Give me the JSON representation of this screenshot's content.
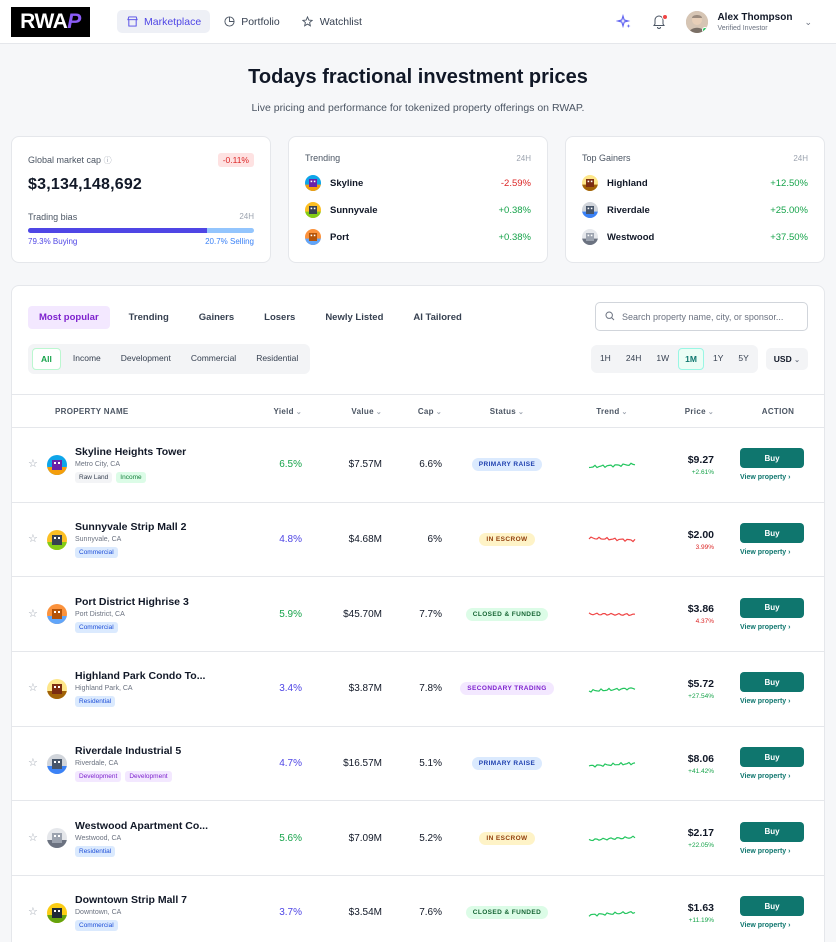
{
  "header": {
    "logo_text": "RWA",
    "logo_accent": "P",
    "nav": [
      {
        "label": "Marketplace",
        "icon": "store-icon",
        "active": true
      },
      {
        "label": "Portfolio",
        "icon": "pie-chart-icon",
        "active": false
      },
      {
        "label": "Watchlist",
        "icon": "star-icon",
        "active": false
      }
    ],
    "user": {
      "name": "Alex Thompson",
      "role": "Verified Investor"
    }
  },
  "hero": {
    "title": "Todays fractional investment prices",
    "subtitle": "Live pricing and performance for tokenized property offerings on RWAP."
  },
  "market_cap": {
    "label": "Global market cap",
    "change": "-0.11%",
    "value": "$3,134,148,692",
    "bias_label": "Trading bias",
    "bias_period": "24H",
    "buying_pct": 79.3,
    "buying_label": "79.3% Buying",
    "selling_label": "20.7% Selling"
  },
  "trending": {
    "title": "Trending",
    "period": "24H",
    "items": [
      {
        "name": "Skyline",
        "change": "-2.59%",
        "dir": "neg"
      },
      {
        "name": "Sunnyvale",
        "change": "+0.38%",
        "dir": "pos"
      },
      {
        "name": "Port",
        "change": "+0.38%",
        "dir": "pos"
      }
    ]
  },
  "gainers": {
    "title": "Top Gainers",
    "period": "24H",
    "items": [
      {
        "name": "Highland",
        "change": "+12.50%",
        "dir": "pos"
      },
      {
        "name": "Riverdale",
        "change": "+25.00%",
        "dir": "pos"
      },
      {
        "name": "Westwood",
        "change": "+37.50%",
        "dir": "pos"
      }
    ]
  },
  "tabs": [
    "Most popular",
    "Trending",
    "Gainers",
    "Losers",
    "Newly Listed",
    "AI Tailored"
  ],
  "search": {
    "placeholder": "Search property name, city, or sponsor..."
  },
  "categories": [
    "All",
    "Income",
    "Development",
    "Commercial",
    "Residential"
  ],
  "ranges": [
    "1H",
    "24H",
    "1W",
    "1M",
    "1Y",
    "5Y"
  ],
  "currency": "USD",
  "columns": {
    "name": "PROPERTY NAME",
    "yield": "Yield",
    "value": "Value",
    "cap": "Cap",
    "status": "Status",
    "trend": "Trend",
    "price": "Price",
    "action": "ACTION"
  },
  "buy_label": "Buy",
  "view_label": "View property",
  "rows": [
    {
      "name": "Skyline Heights Tower",
      "location": "Metro City, CA",
      "tags": [
        [
          "Raw Land",
          "gray"
        ],
        [
          "Income",
          "green"
        ]
      ],
      "yield": "6.5%",
      "yield_color": "green",
      "value": "$7.57M",
      "cap": "6.6%",
      "status": "PRIMARY RAISE",
      "status_kind": "primary",
      "trend": "up",
      "price": "$9.27",
      "change": "+2.61%",
      "dir": "pos"
    },
    {
      "name": "Sunnyvale Strip Mall 2",
      "location": "Sunnyvale, CA",
      "tags": [
        [
          "Commercial",
          "blue"
        ]
      ],
      "yield": "4.8%",
      "yield_color": "purple",
      "value": "$4.68M",
      "cap": "6%",
      "status": "IN ESCROW",
      "status_kind": "escrow",
      "trend": "down",
      "price": "$2.00",
      "change": "3.99%",
      "dir": "neg"
    },
    {
      "name": "Port District Highrise 3",
      "location": "Port District, CA",
      "tags": [
        [
          "Commercial",
          "blue"
        ]
      ],
      "yield": "5.9%",
      "yield_color": "green",
      "value": "$45.70M",
      "cap": "7.7%",
      "status": "CLOSED & FUNDED",
      "status_kind": "closed",
      "trend": "flat-down",
      "price": "$3.86",
      "change": "4.37%",
      "dir": "neg"
    },
    {
      "name": "Highland Park Condo To...",
      "location": "Highland Park, CA",
      "tags": [
        [
          "Residential",
          "blue"
        ]
      ],
      "yield": "3.4%",
      "yield_color": "purple",
      "value": "$3.87M",
      "cap": "7.8%",
      "status": "SECONDARY TRADING",
      "status_kind": "secondary",
      "trend": "up",
      "price": "$5.72",
      "change": "+27.54%",
      "dir": "pos"
    },
    {
      "name": "Riverdale Industrial 5",
      "location": "Riverdale, CA",
      "tags": [
        [
          "Development",
          "purple"
        ],
        [
          "Development",
          "purple"
        ]
      ],
      "yield": "4.7%",
      "yield_color": "purple",
      "value": "$16.57M",
      "cap": "5.1%",
      "status": "PRIMARY RAISE",
      "status_kind": "primary",
      "trend": "up",
      "price": "$8.06",
      "change": "+41.42%",
      "dir": "pos"
    },
    {
      "name": "Westwood Apartment Co...",
      "location": "Westwood, CA",
      "tags": [
        [
          "Residential",
          "blue"
        ]
      ],
      "yield": "5.6%",
      "yield_color": "green",
      "value": "$7.09M",
      "cap": "5.2%",
      "status": "IN ESCROW",
      "status_kind": "escrow",
      "trend": "up",
      "price": "$2.17",
      "change": "+22.05%",
      "dir": "pos"
    },
    {
      "name": "Downtown Strip Mall 7",
      "location": "Downtown, CA",
      "tags": [
        [
          "Commercial",
          "blue"
        ]
      ],
      "yield": "3.7%",
      "yield_color": "purple",
      "value": "$3.54M",
      "cap": "7.6%",
      "status": "CLOSED & FUNDED",
      "status_kind": "closed",
      "trend": "up",
      "price": "$1.63",
      "change": "+11.19%",
      "dir": "pos"
    }
  ]
}
